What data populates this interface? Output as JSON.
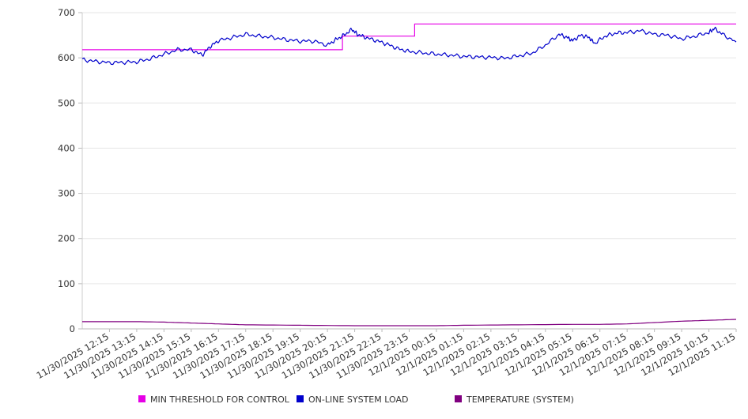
{
  "chart_data": {
    "type": "line",
    "title": "",
    "xlabel": "",
    "ylabel": "",
    "ylim": [
      0,
      700
    ],
    "yticks": [
      0,
      100,
      200,
      300,
      400,
      500,
      600,
      700
    ],
    "grid": true,
    "legend_position": "bottom",
    "x_ticks": [
      "11/30/2025 12:15",
      "11/30/2025 13:15",
      "11/30/2025 14:15",
      "11/30/2025 15:15",
      "11/30/2025 16:15",
      "11/30/2025 17:15",
      "11/30/2025 18:15",
      "11/30/2025 19:15",
      "11/30/2025 20:15",
      "11/30/2025 21:15",
      "11/30/2025 22:15",
      "11/30/2025 23:15",
      "12/1/2025 00:15",
      "12/1/2025 01:15",
      "12/1/2025 02:15",
      "12/1/2025 03:15",
      "12/1/2025 04:15",
      "12/1/2025 05:15",
      "12/1/2025 06:15",
      "12/1/2025 07:15",
      "12/1/2025 08:15",
      "12/1/2025 09:15",
      "12/1/2025 10:15",
      "12/1/2025 11:15"
    ],
    "x_range_hours": [
      0,
      24
    ],
    "series": [
      {
        "name": "MIN THRESHOLD FOR CONTROL",
        "color": "#e600e6",
        "step": true,
        "x": [
          0,
          9.55,
          9.55,
          12.2,
          12.2,
          24
        ],
        "values": [
          618,
          618,
          648,
          648,
          675,
          675
        ]
      },
      {
        "name": "ON-LINE SYSTEM LOAD",
        "color": "#0000cc",
        "step": false,
        "x": [
          0,
          0.5,
          1.0,
          1.5,
          2.0,
          2.5,
          3.0,
          3.5,
          4.0,
          4.4,
          4.7,
          5.0,
          5.5,
          6.0,
          6.5,
          7.0,
          7.5,
          8.0,
          8.5,
          9.0,
          9.3,
          9.6,
          9.9,
          10.1,
          10.4,
          10.8,
          11.2,
          11.6,
          12.0,
          12.5,
          13.0,
          13.5,
          14.0,
          14.5,
          15.0,
          15.5,
          16.0,
          16.5,
          17.0,
          17.5,
          17.8,
          18.0,
          18.3,
          18.6,
          18.8,
          19.2,
          19.6,
          20.0,
          20.5,
          21.0,
          21.5,
          22.0,
          22.5,
          23.0,
          23.2,
          23.5,
          24.0
        ],
        "values": [
          596,
          592,
          589,
          590,
          591,
          598,
          608,
          618,
          618,
          606,
          625,
          638,
          645,
          652,
          648,
          645,
          640,
          637,
          637,
          628,
          640,
          650,
          663,
          652,
          645,
          638,
          630,
          620,
          614,
          611,
          608,
          606,
          603,
          602,
          601,
          599,
          604,
          610,
          628,
          652,
          645,
          638,
          650,
          645,
          632,
          648,
          655,
          656,
          660,
          652,
          650,
          642,
          648,
          656,
          665,
          652,
          635
        ]
      },
      {
        "name": "TEMPERATURE (SYSTEM)",
        "color": "#800080",
        "step": false,
        "x": [
          0,
          2.0,
          3.0,
          4.0,
          5.0,
          6.0,
          8.0,
          10.0,
          12.0,
          13.0,
          14.0,
          16.0,
          18.0,
          19.0,
          20.0,
          21.0,
          22.0,
          23.0,
          24.0
        ],
        "values": [
          16,
          16,
          15,
          13,
          11,
          9,
          8,
          7,
          7,
          7,
          8,
          9,
          10,
          10,
          11,
          14,
          17,
          19,
          21
        ]
      }
    ]
  }
}
